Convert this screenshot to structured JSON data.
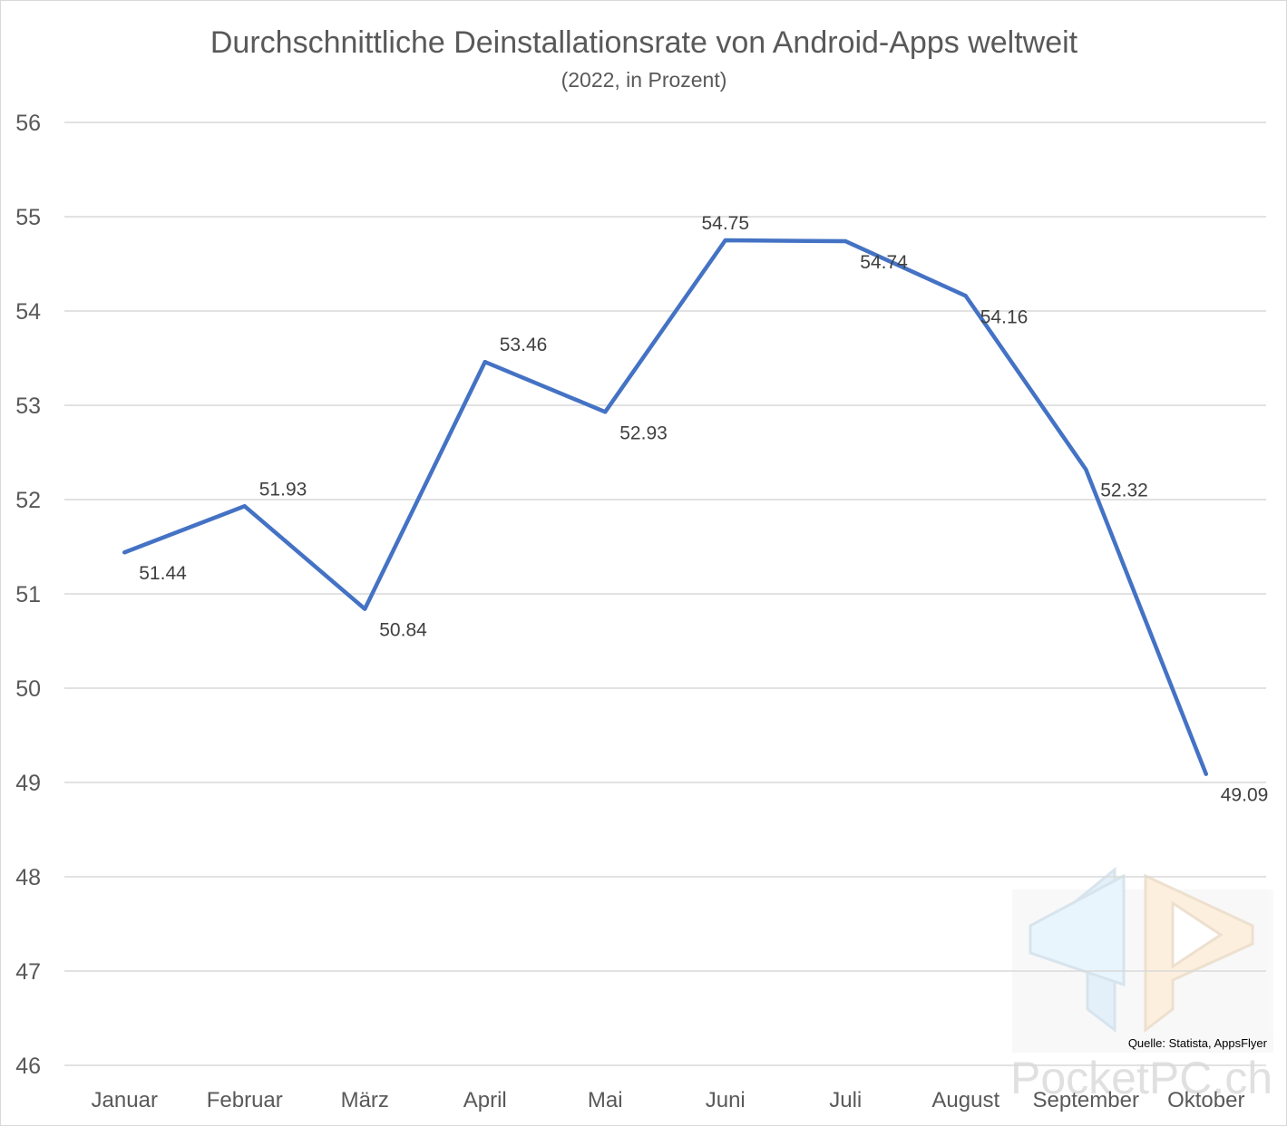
{
  "chart_data": {
    "type": "line",
    "title": "Durchschnittliche Deinstallationsrate von Android-Apps weltweit",
    "subtitle": "(2022, in Prozent)",
    "xlabel": "",
    "ylabel": "",
    "categories": [
      "Januar",
      "Februar",
      "März",
      "April",
      "Mai",
      "Juni",
      "Juli",
      "August",
      "September",
      "Oktober"
    ],
    "values": [
      51.44,
      51.93,
      50.84,
      53.46,
      52.93,
      54.75,
      54.74,
      54.16,
      52.32,
      49.09
    ],
    "data_labels": [
      "51.44",
      "51.93",
      "50.84",
      "53.46",
      "52.93",
      "54.75",
      "54.74",
      "54.16",
      "52.32",
      "49.09"
    ],
    "ylim": [
      46,
      56
    ],
    "yticks": [
      "46",
      "47",
      "48",
      "49",
      "50",
      "51",
      "52",
      "53",
      "54",
      "55",
      "56"
    ],
    "grid": true,
    "legend": "none",
    "line_color": "#4472C4",
    "grid_color": "#d9d9d9",
    "source": "Quelle: Statista, AppsFlyer"
  },
  "watermark": {
    "text": "PocketPC.ch",
    "icon": "pocketpc-logo-icon"
  }
}
